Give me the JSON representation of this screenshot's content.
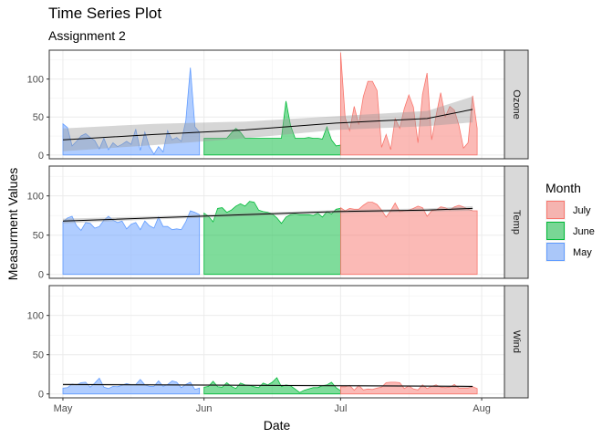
{
  "chart_data": {
    "type": "area",
    "title": "Time Series Plot",
    "subtitle": "Assignment 2",
    "xlabel": "Date",
    "ylabel": "Measurment Values",
    "x_ticks": [
      "May",
      "Jun",
      "Jul",
      "Aug"
    ],
    "y_ticks": [
      0,
      50,
      100
    ],
    "ylim": [
      -5,
      138
    ],
    "x_domain": [
      "1973-04-28",
      "1973-08-06"
    ],
    "facets": [
      "Ozone",
      "Temp",
      "Wind"
    ],
    "legend": {
      "title": "Month",
      "position": "right",
      "entries": [
        {
          "label": "July",
          "color": "#f8766d"
        },
        {
          "label": "June",
          "color": "#00ba38"
        },
        {
          "label": "May",
          "color": "#619cff"
        }
      ]
    },
    "series": [
      {
        "facet": "Ozone",
        "month": "May",
        "start": "1973-05-01",
        "values": [
          41,
          36,
          12,
          18,
          25,
          28,
          23,
          19,
          8,
          22,
          7,
          16,
          11,
          14,
          18,
          14,
          34,
          6,
          30,
          11,
          1,
          11,
          4,
          32,
          20,
          23,
          18,
          45,
          115,
          37,
          30
        ]
      },
      {
        "facet": "Ozone",
        "month": "June",
        "start": "1973-06-01",
        "values": [
          22,
          22,
          22,
          22,
          22,
          22,
          29,
          35,
          30,
          22,
          22,
          22,
          22,
          22,
          22,
          22,
          22,
          22,
          71,
          39,
          22,
          22,
          22,
          23,
          22,
          22,
          21,
          37,
          20,
          12,
          13
        ]
      },
      {
        "facet": "Ozone",
        "month": "July",
        "start": "1973-07-01",
        "values": [
          135,
          49,
          32,
          64,
          40,
          77,
          97,
          97,
          85,
          10,
          27,
          7,
          48,
          35,
          61,
          79,
          63,
          16,
          80,
          108,
          20,
          52,
          82,
          50,
          64,
          59,
          39,
          9,
          16,
          78,
          35
        ]
      },
      {
        "facet": "Temp",
        "month": "May",
        "start": "1973-05-01",
        "values": [
          67,
          72,
          74,
          62,
          56,
          66,
          65,
          59,
          61,
          69,
          74,
          69,
          66,
          68,
          58,
          64,
          66,
          57,
          68,
          62,
          59,
          73,
          61,
          61,
          57,
          58,
          57,
          67,
          81,
          79,
          76
        ]
      },
      {
        "facet": "Temp",
        "month": "June",
        "start": "1973-06-01",
        "values": [
          78,
          74,
          67,
          84,
          85,
          79,
          82,
          87,
          90,
          87,
          93,
          92,
          82,
          80,
          79,
          77,
          72,
          65,
          73,
          76,
          77,
          76,
          76,
          76,
          75,
          78,
          73,
          80,
          77,
          83,
          84
        ]
      },
      {
        "facet": "Temp",
        "month": "July",
        "start": "1973-07-01",
        "values": [
          85,
          81,
          84,
          83,
          83,
          88,
          92,
          92,
          89,
          82,
          73,
          81,
          91,
          80,
          81,
          82,
          84,
          87,
          85,
          74,
          81,
          82,
          86,
          85,
          82,
          86,
          88,
          86,
          83,
          81,
          81
        ]
      },
      {
        "facet": "Wind",
        "month": "May",
        "start": "1973-05-01",
        "values": [
          7.4,
          8,
          12.6,
          11.5,
          14.3,
          14.9,
          8.6,
          13.8,
          20.1,
          8.6,
          6.9,
          9.7,
          9.2,
          10.9,
          13.2,
          11.5,
          12,
          18.4,
          11.5,
          9.7,
          9.7,
          16.6,
          9.7,
          12,
          16.6,
          14.9,
          8,
          12,
          14.9,
          5.7,
          7.4
        ]
      },
      {
        "facet": "Wind",
        "month": "June",
        "start": "1973-06-01",
        "values": [
          8.6,
          9.7,
          16.1,
          9.2,
          8.6,
          14.3,
          9.7,
          6.9,
          13.8,
          11.5,
          10.9,
          9.2,
          8,
          13.8,
          11.5,
          14.9,
          20.7,
          9.2,
          11.5,
          10.3,
          6.3,
          1.7,
          4.6,
          6.3,
          8,
          8,
          10.3,
          11.5,
          14.9,
          8,
          4.1
        ]
      },
      {
        "facet": "Wind",
        "month": "July",
        "start": "1973-07-01",
        "values": [
          9.2,
          9.2,
          10.9,
          4.6,
          10.9,
          5.1,
          6.3,
          5.7,
          7.4,
          8.6,
          14.3,
          14.9,
          14.9,
          14.3,
          6.9,
          10.3,
          6.3,
          5.1,
          11.5,
          6.9,
          9.7,
          11.5,
          8.6,
          8,
          8.6,
          12,
          7.4,
          7.4,
          7.4,
          9.2,
          6.9
        ]
      }
    ],
    "smooth": {
      "Ozone": {
        "values": [
          20,
          27,
          33,
          42,
          48,
          60
        ],
        "band": [
          15,
          14,
          11,
          9,
          10,
          17
        ]
      },
      "Temp": {
        "values": [
          68,
          72,
          76,
          80,
          82,
          84
        ],
        "band": [
          3,
          2,
          2,
          2,
          2,
          3
        ]
      },
      "Wind": {
        "values": [
          12,
          11.5,
          11,
          10.5,
          10,
          9.5
        ],
        "band": [
          1.5,
          1,
          1,
          1,
          1,
          1.5
        ]
      }
    }
  }
}
